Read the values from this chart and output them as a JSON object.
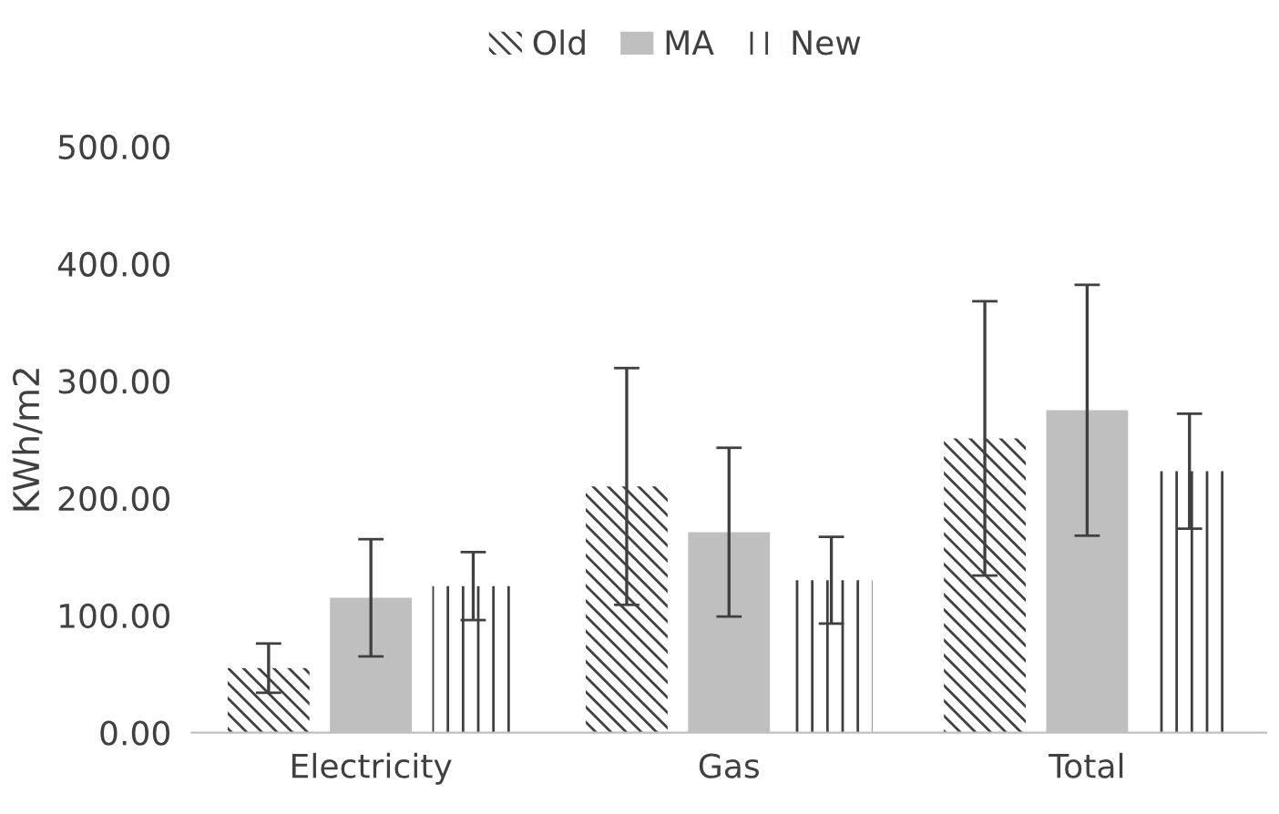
{
  "chart_data": {
    "type": "bar",
    "ylabel": "KWh/m2",
    "categories": [
      "Electricity",
      "Gas",
      "Total"
    ],
    "series": [
      {
        "name": "Old",
        "color": "#404040",
        "values": [
          55,
          210,
          251
        ],
        "errors": [
          21,
          101,
          117
        ]
      },
      {
        "name": "MA",
        "color": "#bfbfbf",
        "values": [
          115,
          171,
          275
        ],
        "errors": [
          50,
          72,
          107
        ]
      },
      {
        "name": "New",
        "color": "#404040",
        "values": [
          125,
          130,
          223
        ],
        "errors": [
          29,
          37,
          49
        ]
      }
    ],
    "ylim": [
      0,
      500
    ],
    "yticks": [
      {
        "value": 0,
        "label": "0.00"
      },
      {
        "value": 100,
        "label": "100.00"
      },
      {
        "value": 200,
        "label": "200.00"
      },
      {
        "value": 300,
        "label": "300.00"
      },
      {
        "value": 400,
        "label": "400.00"
      },
      {
        "value": 500,
        "label": "500.00"
      }
    ],
    "grid": false,
    "legend": "top"
  }
}
